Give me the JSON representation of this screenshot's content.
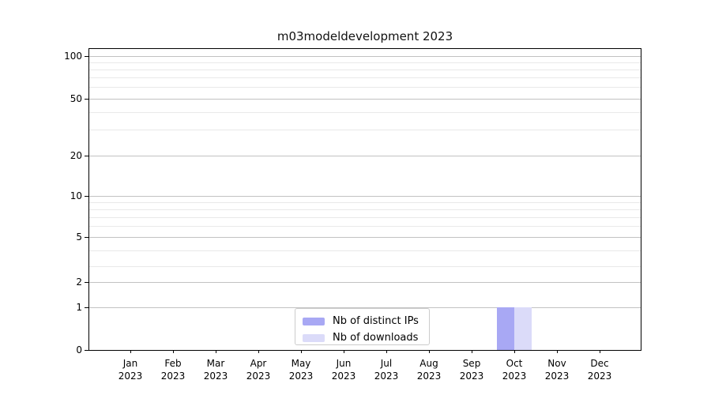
{
  "chart_data": {
    "type": "bar",
    "title": "m03modeldevelopment 2023",
    "x_tick_months": [
      "Jan",
      "Feb",
      "Mar",
      "Apr",
      "May",
      "Jun",
      "Jul",
      "Aug",
      "Sep",
      "Oct",
      "Nov",
      "Dec"
    ],
    "x_tick_year": "2023",
    "yticks": [
      100,
      50,
      20,
      10,
      5,
      2,
      1,
      0
    ],
    "yscale": "symlog",
    "ylim": [
      0,
      110
    ],
    "grid": "horizontal major and minor gridlines",
    "series": [
      {
        "name": "Nb of distinct IPs",
        "color": "#a8a8f4",
        "values": [
          0,
          0,
          0,
          0,
          0,
          0,
          0,
          0,
          0,
          1,
          0,
          0
        ]
      },
      {
        "name": "Nb of downloads",
        "color": "#dbdbf9",
        "values": [
          0,
          0,
          0,
          0,
          0,
          0,
          0,
          0,
          0,
          1,
          0,
          0
        ]
      }
    ],
    "legend": {
      "position": "inside-bottom-center",
      "items": [
        {
          "label": "Nb of distinct IPs",
          "color": "#a8a8f4"
        },
        {
          "label": "Nb of downloads",
          "color": "#dbdbf9"
        }
      ]
    }
  },
  "colors": {
    "grid_major": "#c2c2c2",
    "grid_minor": "#e9e9e9",
    "spine": "#000000",
    "legend_border": "#cccccc",
    "background": "#ffffff"
  }
}
